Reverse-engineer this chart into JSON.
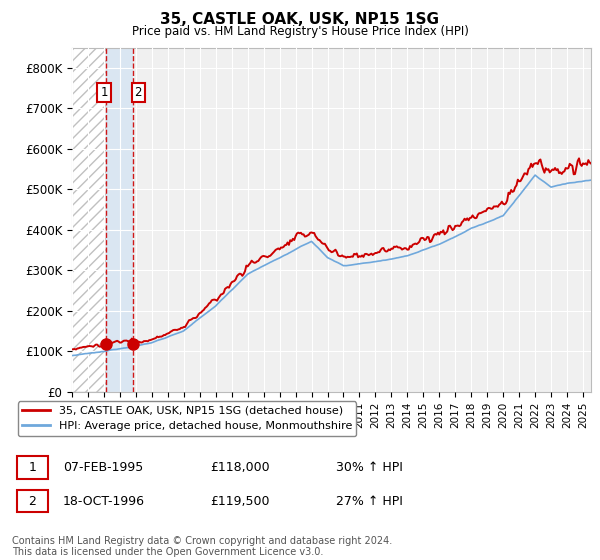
{
  "title": "35, CASTLE OAK, USK, NP15 1SG",
  "subtitle": "Price paid vs. HM Land Registry's House Price Index (HPI)",
  "ylim": [
    0,
    850000
  ],
  "yticks": [
    0,
    100000,
    200000,
    300000,
    400000,
    500000,
    600000,
    700000,
    800000
  ],
  "ytick_labels": [
    "£0",
    "£100K",
    "£200K",
    "£300K",
    "£400K",
    "£500K",
    "£600K",
    "£700K",
    "£800K"
  ],
  "xlim_start": 1993.0,
  "xlim_end": 2025.5,
  "hpi_color": "#6fa8dc",
  "price_color": "#cc0000",
  "sale1_x": 1995.1,
  "sale1_y": 118000,
  "sale1_label": "1",
  "sale1_date": "07-FEB-1995",
  "sale1_price": "£118,000",
  "sale1_hpi": "30% ↑ HPI",
  "sale2_x": 1996.8,
  "sale2_y": 119500,
  "sale2_label": "2",
  "sale2_date": "18-OCT-1996",
  "sale2_price": "£119,500",
  "sale2_hpi": "27% ↑ HPI",
  "legend_line1": "35, CASTLE OAK, USK, NP15 1SG (detached house)",
  "legend_line2": "HPI: Average price, detached house, Monmouthshire",
  "footnote": "Contains HM Land Registry data © Crown copyright and database right 2024.\nThis data is licensed under the Open Government Licence v3.0.",
  "background_color": "#ffffff",
  "plot_bg_color": "#f0f0f0",
  "grid_color": "#ffffff",
  "hatch_color": "#c0c0c0"
}
